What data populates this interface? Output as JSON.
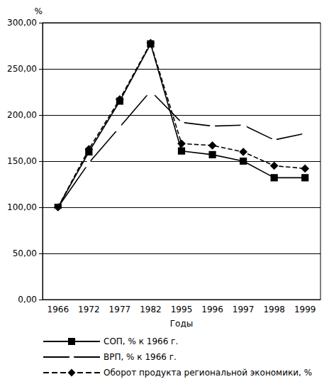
{
  "chart_data": {
    "type": "line",
    "x_label": "Годы",
    "y_label": "%",
    "categories": [
      "1966",
      "1972",
      "1977",
      "1982",
      "1995",
      "1996",
      "1997",
      "1998",
      "1999"
    ],
    "series": [
      {
        "name": "СОП, % к 1966 г.",
        "color": "#000000",
        "marker": "square",
        "line_style": "solid",
        "values": [
          100,
          160,
          215,
          277,
          161,
          157,
          150,
          132,
          132
        ]
      },
      {
        "name": "ВРП, % к 1966 г.",
        "color": "#000000",
        "marker": "triangle",
        "line_style": "solid",
        "values": [
          100,
          148,
          187,
          226,
          192,
          188,
          189,
          173,
          180
        ]
      },
      {
        "name": "Оборот продукта региональной экономики, %",
        "color": "#000000",
        "marker": "diamond",
        "line_style": "dashed",
        "values": [
          100,
          163,
          217,
          278,
          169,
          167,
          160,
          145,
          142
        ]
      }
    ],
    "ylim": [
      0,
      300
    ],
    "yticks": [
      {
        "value": 0,
        "label": "0,00"
      },
      {
        "value": 50,
        "label": "50,00"
      },
      {
        "value": 100,
        "label": "100,00"
      },
      {
        "value": 150,
        "label": "150,00"
      },
      {
        "value": 200,
        "label": "200,00"
      },
      {
        "value": 250,
        "label": "250,00"
      },
      {
        "value": 300,
        "label": "300,00"
      }
    ],
    "grid": true,
    "legend": "bottom"
  }
}
